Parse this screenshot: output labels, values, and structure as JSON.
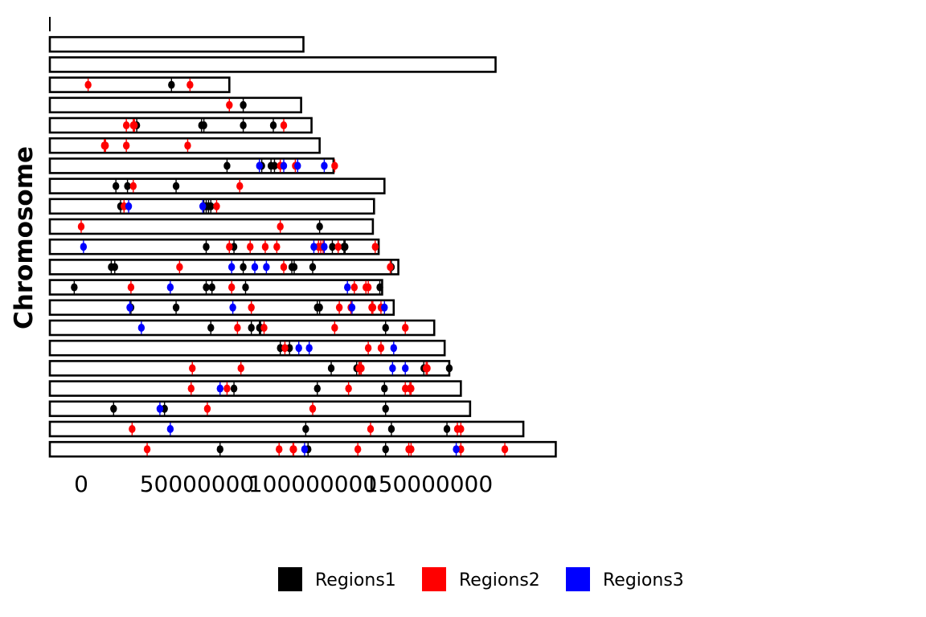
{
  "chart_data": {
    "type": "scatter",
    "ylabel": "Chromosome",
    "xlabel": "",
    "x_ticks": [
      0,
      50000000,
      100000000,
      150000000
    ],
    "x_tick_labels": [
      "0",
      "50000000",
      "100000000",
      "150000000"
    ],
    "xlim": [
      -5000000,
      200000000
    ],
    "legend_position": "bottom",
    "colors": {
      "Regions1": "#000000",
      "Regions2": "#ff0000",
      "Regions3": "#0000ff"
    },
    "chromosome_lengths": [
      0,
      96000000,
      179000000,
      64000000,
      95000000,
      99500000,
      103000000,
      109000000,
      131000000,
      126500000,
      126000000,
      128500000,
      137000000,
      130000000,
      135000000,
      152500000,
      157000000,
      159000000,
      164000000,
      168000000,
      191000000,
      205000000
    ],
    "series": [
      {
        "name": "Regions1",
        "points": [
          [
            3,
            39000000
          ],
          [
            4,
            70000000
          ],
          [
            5,
            24000000
          ],
          [
            5,
            52000000
          ],
          [
            5,
            53000000
          ],
          [
            5,
            70000000
          ],
          [
            5,
            83000000
          ],
          [
            7,
            63000000
          ],
          [
            7,
            78000000
          ],
          [
            7,
            82000000
          ],
          [
            7,
            83500000
          ],
          [
            8,
            15000000
          ],
          [
            8,
            20000000
          ],
          [
            8,
            41000000
          ],
          [
            9,
            17000000
          ],
          [
            9,
            53000000
          ],
          [
            9,
            54000000
          ],
          [
            9,
            55000000
          ],
          [
            9,
            56000000
          ],
          [
            10,
            103000000
          ],
          [
            11,
            54000000
          ],
          [
            11,
            66000000
          ],
          [
            11,
            108500000
          ],
          [
            11,
            113500000
          ],
          [
            11,
            114000000
          ],
          [
            12,
            13000000
          ],
          [
            12,
            14500000
          ],
          [
            12,
            70000000
          ],
          [
            12,
            91000000
          ],
          [
            12,
            92000000
          ],
          [
            12,
            100000000
          ],
          [
            12,
            134000000
          ],
          [
            13,
            -3000000
          ],
          [
            13,
            54000000
          ],
          [
            13,
            56500000
          ],
          [
            13,
            71000000
          ],
          [
            13,
            129000000
          ],
          [
            14,
            21500000
          ],
          [
            14,
            41000000
          ],
          [
            14,
            102000000
          ],
          [
            14,
            103000000
          ],
          [
            15,
            56000000
          ],
          [
            15,
            73500000
          ],
          [
            15,
            77000000
          ],
          [
            15,
            77500000
          ],
          [
            15,
            131500000
          ],
          [
            16,
            86000000
          ],
          [
            16,
            90000000
          ],
          [
            17,
            108000000
          ],
          [
            17,
            119000000
          ],
          [
            17,
            148000000
          ],
          [
            17,
            159000000
          ],
          [
            18,
            66000000
          ],
          [
            18,
            102000000
          ],
          [
            18,
            131000000
          ],
          [
            19,
            14000000
          ],
          [
            19,
            36000000
          ],
          [
            19,
            131500000
          ],
          [
            20,
            97000000
          ],
          [
            20,
            134000000
          ],
          [
            20,
            158000000
          ],
          [
            21,
            60000000
          ],
          [
            21,
            98000000
          ],
          [
            21,
            131500000
          ]
        ]
      },
      {
        "name": "Regions2",
        "points": [
          [
            3,
            3000000
          ],
          [
            3,
            47000000
          ],
          [
            4,
            64000000
          ],
          [
            5,
            19500000
          ],
          [
            5,
            22500000
          ],
          [
            5,
            23000000
          ],
          [
            5,
            87500000
          ],
          [
            6,
            10000000
          ],
          [
            6,
            10500000
          ],
          [
            6,
            19500000
          ],
          [
            6,
            46000000
          ],
          [
            7,
            86000000
          ],
          [
            7,
            92500000
          ],
          [
            7,
            109500000
          ],
          [
            8,
            22500000
          ],
          [
            8,
            68500000
          ],
          [
            9,
            18500000
          ],
          [
            9,
            58500000
          ],
          [
            10,
            0
          ],
          [
            10,
            86000000
          ],
          [
            11,
            64000000
          ],
          [
            11,
            73000000
          ],
          [
            11,
            79500000
          ],
          [
            11,
            84500000
          ],
          [
            11,
            102500000
          ],
          [
            11,
            103500000
          ],
          [
            11,
            104500000
          ],
          [
            11,
            111000000
          ],
          [
            11,
            127000000
          ],
          [
            12,
            42500000
          ],
          [
            12,
            87500000
          ],
          [
            12,
            133500000
          ],
          [
            13,
            21500000
          ],
          [
            13,
            65000000
          ],
          [
            13,
            118000000
          ],
          [
            13,
            123000000
          ],
          [
            13,
            124000000
          ],
          [
            14,
            73500000
          ],
          [
            14,
            111500000
          ],
          [
            14,
            116500000
          ],
          [
            14,
            125500000
          ],
          [
            14,
            126000000
          ],
          [
            14,
            129500000
          ],
          [
            15,
            67500000
          ],
          [
            15,
            79000000
          ],
          [
            15,
            109500000
          ],
          [
            15,
            140000000
          ],
          [
            16,
            88000000
          ],
          [
            16,
            124000000
          ],
          [
            16,
            129500000
          ],
          [
            17,
            48000000
          ],
          [
            17,
            69000000
          ],
          [
            17,
            120000000
          ],
          [
            17,
            120500000
          ],
          [
            17,
            121000000
          ],
          [
            17,
            149000000
          ],
          [
            17,
            149500000
          ],
          [
            18,
            47500000
          ],
          [
            18,
            63000000
          ],
          [
            18,
            115500000
          ],
          [
            18,
            140000000
          ],
          [
            18,
            142000000
          ],
          [
            18,
            142500000
          ],
          [
            19,
            54500000
          ],
          [
            19,
            100000000
          ],
          [
            20,
            22000000
          ],
          [
            20,
            125000000
          ],
          [
            20,
            162500000
          ],
          [
            20,
            164000000
          ],
          [
            21,
            28500000
          ],
          [
            21,
            85500000
          ],
          [
            21,
            91500000
          ],
          [
            21,
            91800000
          ],
          [
            21,
            119500000
          ],
          [
            21,
            141500000
          ],
          [
            21,
            142500000
          ],
          [
            21,
            164000000
          ],
          [
            21,
            183000000
          ]
        ]
      },
      {
        "name": "Regions3",
        "points": [
          [
            7,
            77000000
          ],
          [
            7,
            87500000
          ],
          [
            7,
            93500000
          ],
          [
            7,
            105000000
          ],
          [
            9,
            20500000
          ],
          [
            9,
            52500000
          ],
          [
            11,
            1000000
          ],
          [
            11,
            100500000
          ],
          [
            11,
            105000000
          ],
          [
            12,
            65000000
          ],
          [
            12,
            75000000
          ],
          [
            12,
            80000000
          ],
          [
            13,
            38500000
          ],
          [
            13,
            115000000
          ],
          [
            14,
            21000000
          ],
          [
            14,
            65500000
          ],
          [
            14,
            117000000
          ],
          [
            14,
            131000000
          ],
          [
            15,
            26000000
          ],
          [
            16,
            94000000
          ],
          [
            16,
            98500000
          ],
          [
            16,
            135000000
          ],
          [
            17,
            134500000
          ],
          [
            17,
            140000000
          ],
          [
            18,
            60000000
          ],
          [
            19,
            34000000
          ],
          [
            20,
            38500000
          ],
          [
            21,
            96500000
          ],
          [
            21,
            162000000
          ]
        ]
      }
    ]
  }
}
